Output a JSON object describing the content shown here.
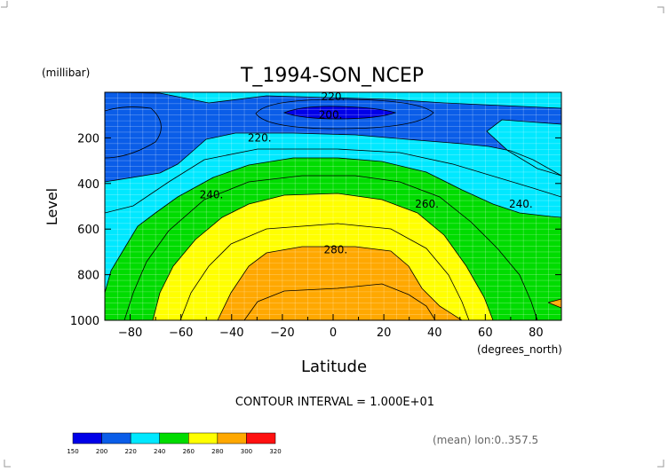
{
  "chart_data": {
    "type": "contour",
    "title": "T_1994-SON_NCEP",
    "y_units": "(millibar)",
    "ylabel": "Level",
    "xlabel": "Latitude",
    "x_units": "(degrees_north)",
    "xlim": [
      -90,
      90
    ],
    "ylim": [
      1000,
      0
    ],
    "x_ticks": [
      -80,
      -60,
      -40,
      -20,
      0,
      20,
      40,
      60,
      80
    ],
    "x_tick_labels": [
      "−80",
      "−60",
      "−40",
      "−20",
      "0",
      "20",
      "40",
      "60",
      "80"
    ],
    "y_ticks": [
      200,
      400,
      600,
      800,
      1000
    ],
    "y_tick_labels": [
      "200",
      "400",
      "600",
      "800",
      "1000"
    ],
    "grid": true,
    "levels": [
      150,
      200,
      220,
      240,
      260,
      280,
      300,
      320
    ],
    "fill_colors": [
      "#0000e8",
      "#0a5de8",
      "#00e8ff",
      "#00dc00",
      "#ffff00",
      "#ffa800",
      "#ff1010"
    ],
    "contour_labels": [
      {
        "text": "220.",
        "x": 0,
        "y": 20
      },
      {
        "text": "200.",
        "x": -1,
        "y": 100
      },
      {
        "text": "220.",
        "x": -29,
        "y": 200
      },
      {
        "text": "240.",
        "x": -48,
        "y": 450
      },
      {
        "text": "260.",
        "x": 37,
        "y": 490
      },
      {
        "text": "240.",
        "x": 74,
        "y": 490
      },
      {
        "text": "280.",
        "x": 1,
        "y": 690
      }
    ],
    "contour_interval_text": "CONTOUR INTERVAL = 1.000E+01",
    "colorbar_labels": [
      "150",
      "200",
      "220",
      "240",
      "260",
      "280",
      "300",
      "320"
    ],
    "footnote": "(mean) lon:0..357.5"
  }
}
